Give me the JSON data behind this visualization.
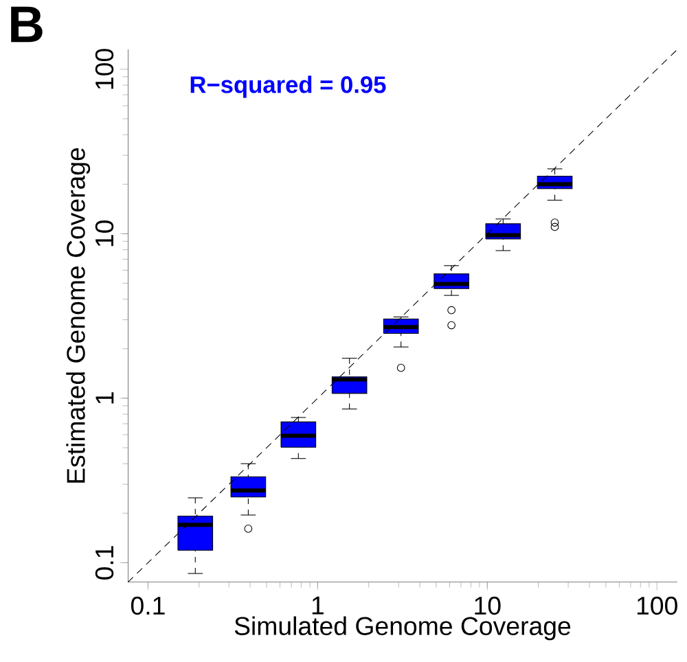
{
  "chart_data": {
    "type": "box",
    "title": "B",
    "xlabel": "Simulated Genome Coverage",
    "ylabel": "Estimated Genome Coverage",
    "annotations": [
      "R−squared = 0.95"
    ],
    "log": "xy",
    "xlim": [
      0.076,
      132
    ],
    "ylim": [
      0.076,
      132
    ],
    "xticks": [
      0.1,
      1,
      10,
      100
    ],
    "yticks": [
      0.1,
      1,
      10,
      100
    ],
    "series": [
      {
        "color": "#0000ff",
        "x": [
          0.19,
          0.39,
          0.77,
          1.54,
          3.1,
          6.15,
          12.4,
          25
        ],
        "boxes": [
          {
            "low": 0.086,
            "q1": 0.119,
            "median": 0.17,
            "q3": 0.192,
            "high": 0.248
          },
          {
            "low": 0.195,
            "q1": 0.251,
            "median": 0.275,
            "q3": 0.333,
            "high": 0.4,
            "outliers": [
              0.161
            ]
          },
          {
            "low": 0.43,
            "q1": 0.504,
            "median": 0.592,
            "q3": 0.718,
            "high": 0.764
          },
          {
            "low": 0.86,
            "q1": 1.07,
            "median": 1.3,
            "q3": 1.35,
            "high": 1.75
          },
          {
            "low": 2.05,
            "q1": 2.48,
            "median": 2.71,
            "q3": 3.03,
            "high": 3.12,
            "outliers": [
              1.53
            ]
          },
          {
            "low": 4.22,
            "q1": 4.64,
            "median": 4.95,
            "q3": 5.7,
            "high": 6.4,
            "outliers": [
              3.43,
              2.78
            ]
          },
          {
            "low": 7.9,
            "q1": 9.3,
            "median": 9.8,
            "q3": 11.5,
            "high": 12.3
          },
          {
            "low": 16,
            "q1": 18.8,
            "median": 20,
            "q3": 22.4,
            "high": 24.8,
            "outliers": [
              11.7,
              11.0
            ]
          }
        ]
      },
      {
        "type": "line",
        "color": "#000000",
        "line_style": "dashed",
        "x": [
          0.076,
          132
        ],
        "values": [
          0.076,
          132
        ]
      }
    ]
  }
}
